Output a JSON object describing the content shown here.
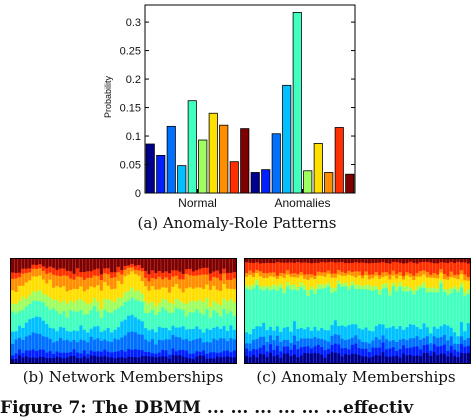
{
  "chart_data": [
    {
      "type": "bar",
      "ylabel": "Probability",
      "ylim": [
        0,
        0.33
      ],
      "yticks": [
        0,
        0.05,
        0.1,
        0.15,
        0.2,
        0.25,
        0.3
      ],
      "ytick_labels": [
        "0",
        "0.05",
        "0.1",
        "0.15",
        "0.2",
        "0.25",
        "0.3"
      ],
      "categories": [
        "Normal",
        "Anomalies"
      ],
      "series_colors": [
        "#00008f",
        "#0020ff",
        "#0070ff",
        "#00c0ff",
        "#40ffbf",
        "#9fff60",
        "#ffdf00",
        "#ff8f00",
        "#ff3000",
        "#800000"
      ],
      "values": [
        [
          0.086,
          0.066,
          0.117,
          0.048,
          0.162,
          0.093,
          0.14,
          0.119,
          0.055,
          0.113
        ],
        [
          0.036,
          0.041,
          0.104,
          0.189,
          0.317,
          0.039,
          0.087,
          0.036,
          0.115,
          0.033
        ]
      ],
      "grid": false,
      "legend": "none"
    },
    {
      "type": "heatmap",
      "panel": "network",
      "stack_colors": [
        "#00008f",
        "#0020ff",
        "#0070ff",
        "#00c0ff",
        "#40ffbf",
        "#9fff60",
        "#ffdf00",
        "#ff8f00",
        "#ff3000",
        "#800000"
      ],
      "columns": 66,
      "base_fractions": [
        0.06,
        0.05,
        0.11,
        0.11,
        0.16,
        0.1,
        0.13,
        0.11,
        0.06,
        0.11
      ]
    },
    {
      "type": "heatmap",
      "panel": "anomaly",
      "stack_colors": [
        "#00008f",
        "#0020ff",
        "#0070ff",
        "#00c0ff",
        "#40ffbf",
        "#9fff60",
        "#ffdf00",
        "#ff8f00",
        "#ff3000",
        "#800000"
      ],
      "columns": 66,
      "base_fractions": [
        0.08,
        0.07,
        0.08,
        0.11,
        0.37,
        0.04,
        0.08,
        0.04,
        0.1,
        0.03
      ]
    }
  ],
  "captions": {
    "a": "(a) Anomaly-Role Patterns",
    "b": "(b) Network Memberships",
    "c": "(c) Anomaly Memberships"
  },
  "footer": "Figure 7: The DBMM ... ... ... ... ... ...effectiv"
}
